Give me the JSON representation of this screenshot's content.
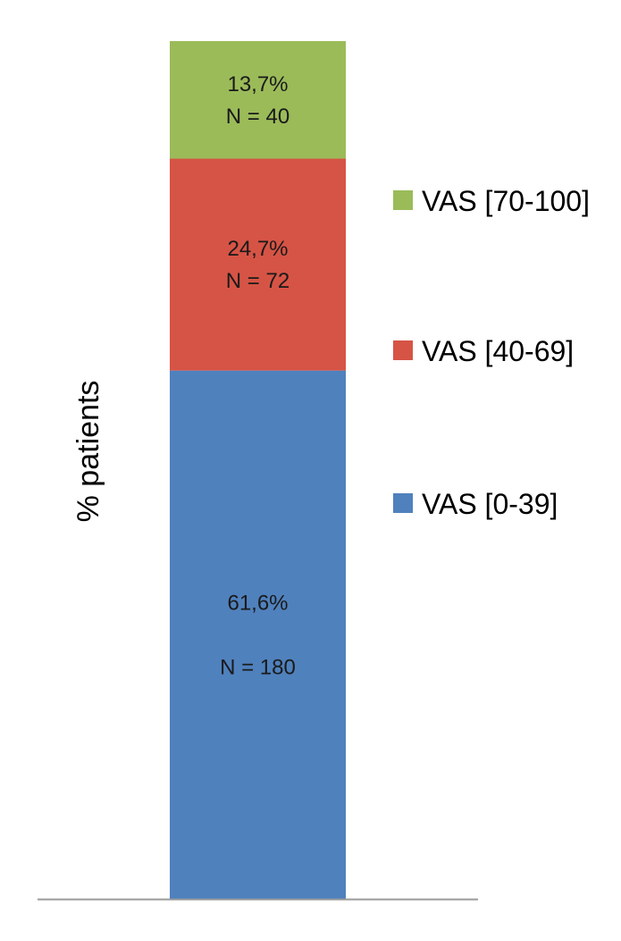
{
  "chart_data": {
    "type": "bar",
    "stacked": true,
    "ylabel": "% patients",
    "ylim": [
      0,
      100
    ],
    "grid": false,
    "legend_position": "right",
    "categories": [
      ""
    ],
    "series": [
      {
        "name": "VAS [0-39]",
        "values": [
          61.6
        ],
        "n": 180,
        "pct_label": "61,6%",
        "n_label": "N = 180",
        "color": "#4F81BD"
      },
      {
        "name": "VAS [40-69]",
        "values": [
          24.7
        ],
        "n": 72,
        "pct_label": "24,7%",
        "n_label": "N = 72",
        "color": "#D65445"
      },
      {
        "name": "VAS [70-100]",
        "values": [
          13.7
        ],
        "n": 40,
        "pct_label": "13,7%",
        "n_label": "N = 40",
        "color": "#9BBB59"
      }
    ],
    "legend_order": [
      "VAS [70-100]",
      "VAS [40-69]",
      "VAS [0-39]"
    ]
  },
  "colors": {
    "axis": "#9a9a9a"
  }
}
